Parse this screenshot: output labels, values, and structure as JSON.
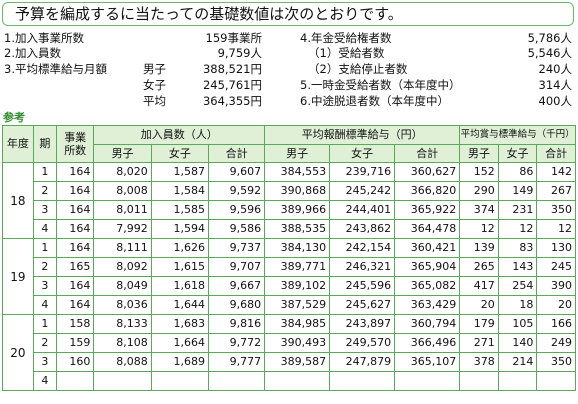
{
  "title": "予算を編成するに当たっての基礎数値は次のとおりです。",
  "left_items": [
    {
      "label": "1.加入事業所数",
      "value": "159事業所"
    },
    {
      "label": "2.加入員数",
      "value": "9,759人"
    },
    {
      "label": "3.平均標準給与月額",
      "sub": "男子",
      "value": "388,521円"
    },
    {
      "label": "",
      "sub": "女子",
      "value": "245,761円"
    },
    {
      "label": "",
      "sub": "平均",
      "value": "364,355円"
    }
  ],
  "right_items": [
    {
      "label": "4.年金受給権者数",
      "value": "5,786人"
    },
    {
      "label": "（1）受給者数",
      "value": "5,546人"
    },
    {
      "label": "（2）支給停止者数",
      "value": "240人"
    },
    {
      "label": "5.一時金受給者数（本年度中）",
      "value": "314人"
    },
    {
      "label": "6.中途脱退者数（本年度中）",
      "value": "400人"
    }
  ],
  "reference_label": "参考",
  "table": {
    "headers": {
      "year": "年度",
      "period": "期",
      "offices": "事業所数",
      "members": "加入員数（人）",
      "salary": "平均報酬標準給与（円）",
      "bonus": "平均賞与標準給与（千円）",
      "male": "男子",
      "female": "女子",
      "total": "合計"
    },
    "groups": [
      {
        "year": "18",
        "rows": [
          [
            "1",
            "164",
            "8,020",
            "1,587",
            "9,607",
            "384,553",
            "239,716",
            "360,627",
            "152",
            "86",
            "142"
          ],
          [
            "2",
            "164",
            "8,008",
            "1,584",
            "9,592",
            "390,868",
            "245,242",
            "366,820",
            "290",
            "149",
            "267"
          ],
          [
            "3",
            "164",
            "8,011",
            "1,585",
            "9,596",
            "389,966",
            "244,401",
            "365,922",
            "374",
            "231",
            "350"
          ],
          [
            "4",
            "164",
            "7,992",
            "1,594",
            "9,586",
            "388,535",
            "243,862",
            "364,478",
            "12",
            "12",
            "12"
          ]
        ]
      },
      {
        "year": "19",
        "rows": [
          [
            "1",
            "164",
            "8,111",
            "1,626",
            "9,737",
            "384,130",
            "242,154",
            "360,421",
            "139",
            "83",
            "130"
          ],
          [
            "2",
            "165",
            "8,092",
            "1,615",
            "9,707",
            "389,771",
            "246,321",
            "365,904",
            "265",
            "143",
            "245"
          ],
          [
            "3",
            "164",
            "8,049",
            "1,618",
            "9,667",
            "389,102",
            "245,596",
            "365,082",
            "417",
            "254",
            "390"
          ],
          [
            "4",
            "164",
            "8,036",
            "1,644",
            "9,680",
            "387,529",
            "245,627",
            "363,429",
            "20",
            "18",
            "20"
          ]
        ]
      },
      {
        "year": "20",
        "rows": [
          [
            "1",
            "158",
            "8,133",
            "1,683",
            "9,816",
            "384,985",
            "243,897",
            "360,794",
            "179",
            "105",
            "166"
          ],
          [
            "2",
            "159",
            "8,108",
            "1,664",
            "9,772",
            "390,493",
            "249,570",
            "366,496",
            "271",
            "140",
            "249"
          ],
          [
            "3",
            "160",
            "8,088",
            "1,689",
            "9,777",
            "389,587",
            "247,879",
            "365,107",
            "378",
            "214",
            "350"
          ],
          [
            "4",
            "",
            "",
            "",
            "",
            "",
            "",
            "",
            "",
            "",
            ""
          ]
        ]
      }
    ]
  }
}
